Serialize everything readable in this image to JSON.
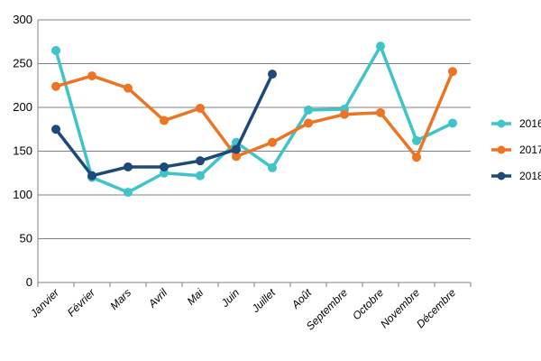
{
  "chart_data": {
    "type": "line",
    "title": "",
    "xlabel": "",
    "ylabel": "",
    "ylim": [
      0,
      300
    ],
    "yticks": [
      0,
      50,
      100,
      150,
      200,
      250,
      300
    ],
    "grid": "horizontal",
    "legend_position": "right",
    "categories": [
      "Janvier",
      "Février",
      "Mars",
      "Avril",
      "Mai",
      "Juin",
      "Juillet",
      "Août",
      "Septembre",
      "Octobre",
      "Novembre",
      "Décembre"
    ],
    "series": [
      {
        "name": "2016",
        "color": "#3EC4C9",
        "values": [
          265,
          120,
          103,
          125,
          122,
          160,
          131,
          197,
          198,
          270,
          162,
          182
        ]
      },
      {
        "name": "2017",
        "color": "#EE7425",
        "values": [
          224,
          236,
          222,
          185,
          199,
          144,
          160,
          182,
          192,
          194,
          143,
          241
        ]
      },
      {
        "name": "2018",
        "color": "#1D4A7B",
        "values": [
          175,
          122,
          132,
          132,
          139,
          152,
          238,
          null,
          null,
          null,
          null,
          null
        ]
      }
    ]
  }
}
